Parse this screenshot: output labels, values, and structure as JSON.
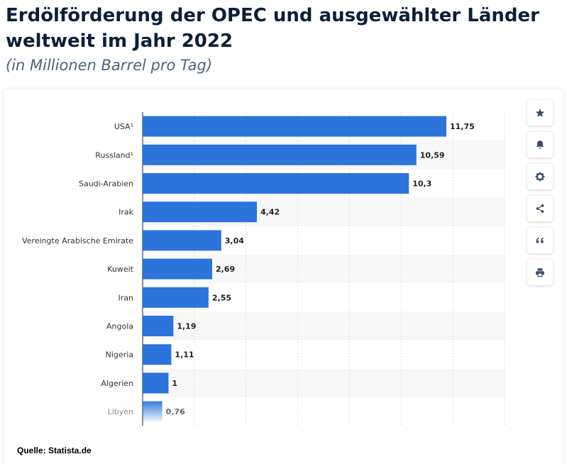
{
  "header": {
    "title": "Erdölförderung der OPEC und ausgewählter Länder weltweit im Jahr 2022",
    "subtitle": "(in Millionen Barrel pro Tag)"
  },
  "footer": {
    "source": "Quelle: Statista.de"
  },
  "toolbar": {
    "buttons": [
      {
        "icon": "star-icon"
      },
      {
        "icon": "bell-icon"
      },
      {
        "icon": "gear-icon"
      },
      {
        "icon": "share-icon"
      },
      {
        "icon": "quote-icon"
      },
      {
        "icon": "print-icon"
      }
    ]
  },
  "colors": {
    "bar": "#2a74db",
    "stripe": "#f7f7f7",
    "grid": "#c8c8c8",
    "axis": "#222222",
    "label": "#333333",
    "faded_label": "#8a8a8a"
  },
  "chart_data": {
    "type": "bar",
    "orientation": "horizontal",
    "categories": [
      "USA¹",
      "Russland¹",
      "Saudi-Arabien",
      "Irak",
      "Vereingte Arabische Emirate",
      "Kuweit",
      "Iran",
      "Angola",
      "Nigeria",
      "Algerien",
      "Libyen"
    ],
    "values": [
      11.75,
      10.59,
      10.3,
      4.42,
      3.04,
      2.69,
      2.55,
      1.19,
      1.11,
      1,
      0.76
    ],
    "value_labels": [
      "11,75",
      "10,59",
      "10,3",
      "4,42",
      "3,04",
      "2,69",
      "2,55",
      "1,19",
      "1,11",
      "1",
      "0,76"
    ],
    "xlim": [
      0,
      14
    ],
    "grid": true,
    "title": "Erdölförderung der OPEC und ausgewählter Länder weltweit im Jahr 2022",
    "subtitle": "(in Millionen Barrel pro Tag)"
  }
}
